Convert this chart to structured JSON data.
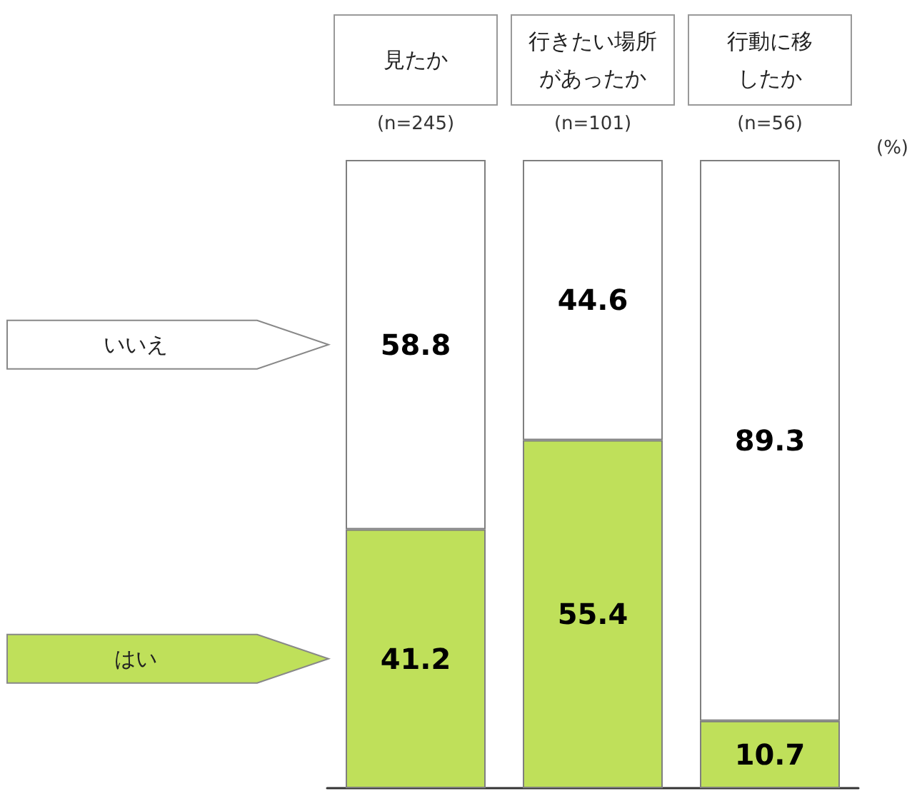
{
  "chart_data": {
    "type": "bar",
    "stacked": true,
    "data_labels": true,
    "categories": [
      "見たか",
      "行きたい場所があったか",
      "行動に移したか"
    ],
    "series": [
      {
        "name": "はい",
        "color": "#bfe05a",
        "values": [
          41.2,
          55.4,
          10.7
        ]
      },
      {
        "name": "いいえ",
        "color": "#ffffff",
        "values": [
          58.8,
          44.6,
          89.3
        ]
      }
    ],
    "legend": "left",
    "annotations": [
      "(n=245)",
      "(n=101)",
      "(n=56)",
      "(%)"
    ]
  }
}
